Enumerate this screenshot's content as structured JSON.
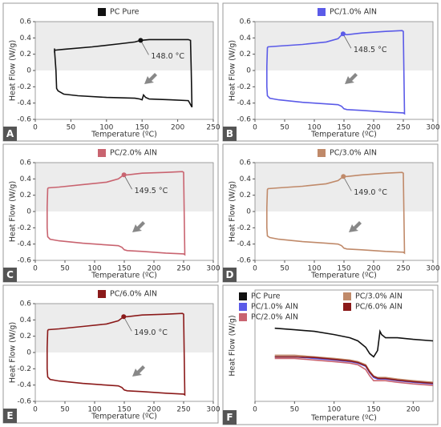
{
  "chart_data": [
    {
      "type": "line",
      "panel_label": "A",
      "xlabel": "Temperature (ºC)",
      "ylabel": "Heat Flow (W/g)",
      "xlim": [
        0,
        250
      ],
      "xticks": [
        0,
        50,
        100,
        150,
        200,
        250
      ],
      "ylim": [
        -0.6,
        0.6
      ],
      "yticks": [
        -0.6,
        -0.4,
        -0.2,
        0,
        0.2,
        0.4,
        0.6
      ],
      "series": [
        {
          "name": "PC Pure",
          "color": "#111111",
          "x": [
            27,
            27,
            28,
            40,
            80,
            120,
            140,
            148,
            160,
            190,
            215,
            218,
            219,
            220,
            215,
            190,
            160,
            155,
            152,
            150,
            147,
            140,
            100,
            60,
            40,
            32,
            30,
            29,
            27
          ],
          "values": [
            0.27,
            0.24,
            0.25,
            0.26,
            0.29,
            0.33,
            0.35,
            0.37,
            0.38,
            0.38,
            0.38,
            0.37,
            0.0,
            -0.45,
            -0.37,
            -0.36,
            -0.35,
            -0.33,
            -0.3,
            -0.36,
            -0.35,
            -0.34,
            -0.33,
            -0.31,
            -0.29,
            -0.25,
            -0.22,
            0.0,
            0.25
          ]
        }
      ],
      "annotation": {
        "text": "148.0 °C",
        "x": 148,
        "y": 0.37
      }
    },
    {
      "type": "line",
      "panel_label": "B",
      "xlabel": "Temperature (ºC)",
      "ylabel": "Heat Flow (W/g)",
      "xlim": [
        0,
        300
      ],
      "xticks": [
        0,
        50,
        100,
        150,
        200,
        250,
        300
      ],
      "ylim": [
        -0.6,
        0.6
      ],
      "yticks": [
        -0.6,
        -0.4,
        -0.2,
        0,
        0.2,
        0.4,
        0.6
      ],
      "series": [
        {
          "name": "PC/1.0% AlN",
          "color": "#5b5be8",
          "x": [
            20,
            20,
            21,
            22,
            40,
            80,
            120,
            140,
            148,
            155,
            180,
            220,
            248,
            250,
            251,
            252,
            250,
            220,
            180,
            155,
            150,
            146,
            140,
            120,
            80,
            40,
            25,
            21,
            20,
            20
          ],
          "values": [
            -0.05,
            0.05,
            0.28,
            0.29,
            0.3,
            0.32,
            0.35,
            0.39,
            0.45,
            0.44,
            0.46,
            0.48,
            0.49,
            0.48,
            0.0,
            -0.53,
            -0.52,
            -0.51,
            -0.49,
            -0.48,
            -0.47,
            -0.44,
            -0.42,
            -0.41,
            -0.39,
            -0.36,
            -0.34,
            -0.31,
            -0.2,
            -0.05
          ]
        }
      ],
      "annotation": {
        "text": "148.5 °C",
        "x": 148.5,
        "y": 0.45
      }
    },
    {
      "type": "line",
      "panel_label": "C",
      "xlabel": "Temperature (ºC)",
      "ylabel": "Heat Flow (W/g)",
      "xlim": [
        0,
        300
      ],
      "xticks": [
        0,
        50,
        100,
        150,
        200,
        250,
        300
      ],
      "ylim": [
        -0.6,
        0.6
      ],
      "yticks": [
        -0.6,
        -0.4,
        -0.2,
        0,
        0.2,
        0.4,
        0.6
      ],
      "series": [
        {
          "name": "PC/2.0% AlN",
          "color": "#c96470",
          "x": [
            20,
            20,
            21,
            22,
            40,
            80,
            120,
            140,
            149,
            155,
            180,
            220,
            248,
            250,
            251,
            252,
            250,
            220,
            180,
            155,
            150,
            146,
            140,
            120,
            80,
            40,
            25,
            21,
            20,
            20
          ],
          "values": [
            -0.05,
            0.05,
            0.28,
            0.29,
            0.3,
            0.33,
            0.36,
            0.4,
            0.45,
            0.45,
            0.47,
            0.48,
            0.49,
            0.48,
            0.0,
            -0.53,
            -0.52,
            -0.51,
            -0.49,
            -0.48,
            -0.47,
            -0.44,
            -0.42,
            -0.41,
            -0.39,
            -0.36,
            -0.34,
            -0.31,
            -0.2,
            -0.05
          ]
        }
      ],
      "annotation": {
        "text": "149.5 °C",
        "x": 149.5,
        "y": 0.45
      }
    },
    {
      "type": "line",
      "panel_label": "D",
      "xlabel": "Temperature (ºC)",
      "ylabel": "Heat Flow (W/g)",
      "xlim": [
        0,
        300
      ],
      "xticks": [
        0,
        50,
        100,
        150,
        200,
        250,
        300
      ],
      "ylim": [
        -0.6,
        0.6
      ],
      "yticks": [
        -0.6,
        -0.4,
        -0.2,
        0,
        0.2,
        0.4,
        0.6
      ],
      "series": [
        {
          "name": "PC/3.0% AlN",
          "color": "#c08a6a",
          "x": [
            20,
            20,
            21,
            22,
            40,
            80,
            120,
            140,
            149,
            155,
            180,
            220,
            248,
            250,
            251,
            252,
            250,
            220,
            180,
            155,
            150,
            146,
            140,
            120,
            80,
            40,
            25,
            21,
            20,
            20
          ],
          "values": [
            -0.05,
            0.05,
            0.27,
            0.28,
            0.29,
            0.31,
            0.34,
            0.38,
            0.43,
            0.43,
            0.45,
            0.47,
            0.48,
            0.47,
            0.0,
            -0.51,
            -0.5,
            -0.49,
            -0.47,
            -0.46,
            -0.45,
            -0.42,
            -0.4,
            -0.39,
            -0.37,
            -0.34,
            -0.32,
            -0.3,
            -0.2,
            -0.05
          ]
        }
      ],
      "annotation": {
        "text": "149.0 °C",
        "x": 149,
        "y": 0.43
      }
    },
    {
      "type": "line",
      "panel_label": "E",
      "xlabel": "Temperature (ºC)",
      "ylabel": "Heat Flow (W/g)",
      "xlim": [
        0,
        300
      ],
      "xticks": [
        0,
        50,
        100,
        150,
        200,
        250,
        300
      ],
      "ylim": [
        -0.6,
        0.6
      ],
      "yticks": [
        -0.6,
        -0.4,
        -0.2,
        0,
        0.2,
        0.4,
        0.6
      ],
      "series": [
        {
          "name": "PC/6.0% AlN",
          "color": "#8b1a1a",
          "x": [
            20,
            20,
            21,
            22,
            40,
            80,
            120,
            140,
            149,
            155,
            180,
            220,
            248,
            250,
            251,
            252,
            250,
            220,
            180,
            155,
            150,
            146,
            140,
            120,
            80,
            40,
            25,
            21,
            20,
            20
          ],
          "values": [
            -0.05,
            0.05,
            0.27,
            0.28,
            0.29,
            0.32,
            0.35,
            0.39,
            0.44,
            0.44,
            0.46,
            0.47,
            0.48,
            0.47,
            0.0,
            -0.52,
            -0.51,
            -0.5,
            -0.48,
            -0.47,
            -0.46,
            -0.43,
            -0.41,
            -0.4,
            -0.38,
            -0.35,
            -0.33,
            -0.3,
            -0.2,
            -0.05
          ]
        }
      ],
      "annotation": {
        "text": "149.0 °C",
        "x": 149,
        "y": 0.44
      }
    },
    {
      "type": "line",
      "panel_label": "F",
      "xlabel": "Temperature (ºC)",
      "ylabel": "Heat Flow (W/g)",
      "xlim": [
        0,
        225
      ],
      "xticks": [
        0,
        50,
        100,
        150,
        200
      ],
      "ylim": [
        -0.6,
        -0.25
      ],
      "series": [
        {
          "name": "PC Pure",
          "color": "#111111",
          "x": [
            25,
            50,
            75,
            100,
            120,
            130,
            140,
            145,
            150,
            155,
            158,
            160,
            165,
            180,
            200,
            225
          ],
          "values": [
            -0.37,
            -0.375,
            -0.38,
            -0.39,
            -0.4,
            -0.41,
            -0.43,
            -0.45,
            -0.46,
            -0.44,
            -0.38,
            -0.39,
            -0.4,
            -0.4,
            -0.405,
            -0.41
          ]
        },
        {
          "name": "PC/1.0% AlN",
          "color": "#5b5be8",
          "x": [
            25,
            50,
            75,
            100,
            120,
            130,
            140,
            145,
            150,
            155,
            158,
            160,
            165,
            180,
            200,
            225
          ],
          "values": [
            -0.46,
            -0.46,
            -0.465,
            -0.47,
            -0.475,
            -0.48,
            -0.49,
            -0.51,
            -0.525,
            -0.53,
            -0.53,
            -0.53,
            -0.53,
            -0.535,
            -0.54,
            -0.545
          ]
        },
        {
          "name": "PC/2.0% AlN",
          "color": "#c96470",
          "x": [
            25,
            50,
            75,
            100,
            120,
            130,
            140,
            145,
            150,
            155,
            158,
            160,
            165,
            180,
            200,
            225
          ],
          "values": [
            -0.465,
            -0.465,
            -0.47,
            -0.475,
            -0.48,
            -0.485,
            -0.5,
            -0.52,
            -0.535,
            -0.535,
            -0.535,
            -0.535,
            -0.535,
            -0.54,
            -0.545,
            -0.55
          ]
        },
        {
          "name": "PC/3.0% AlN",
          "color": "#c08a6a",
          "x": [
            25,
            50,
            75,
            100,
            120,
            130,
            140,
            145,
            150,
            155,
            158,
            160,
            165,
            180,
            200,
            225
          ],
          "values": [
            -0.455,
            -0.455,
            -0.46,
            -0.465,
            -0.47,
            -0.475,
            -0.485,
            -0.505,
            -0.52,
            -0.525,
            -0.525,
            -0.525,
            -0.525,
            -0.53,
            -0.535,
            -0.54
          ]
        },
        {
          "name": "PC/6.0% AlN",
          "color": "#8b1a1a",
          "x": [
            25,
            50,
            75,
            100,
            120,
            130,
            140,
            145,
            150,
            155,
            158,
            160,
            165,
            180,
            200,
            225
          ],
          "values": [
            -0.46,
            -0.46,
            -0.462,
            -0.468,
            -0.473,
            -0.478,
            -0.488,
            -0.508,
            -0.522,
            -0.527,
            -0.528,
            -0.528,
            -0.528,
            -0.533,
            -0.538,
            -0.543
          ]
        }
      ]
    }
  ]
}
